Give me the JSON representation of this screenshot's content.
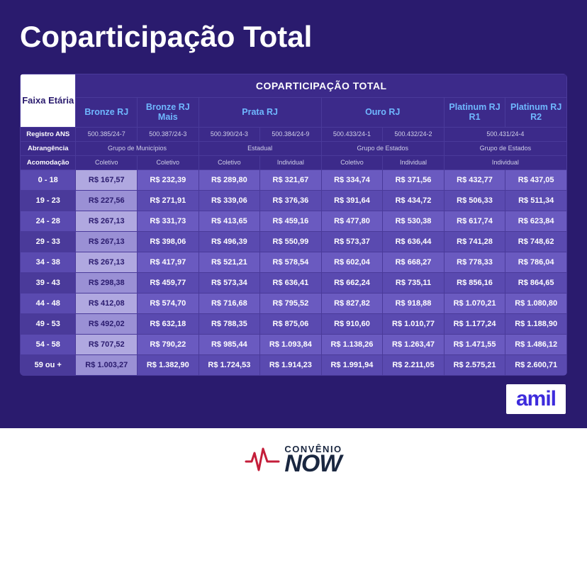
{
  "title": "Coparticipação Total",
  "table": {
    "corner": "Faixa Etária",
    "supertitle": "COPARTICIPAÇÃO TOTAL",
    "plans": [
      "Bronze RJ",
      "Bronze RJ Mais",
      "Prata RJ",
      "Ouro RJ",
      "Platinum RJ R1",
      "Platinum RJ R2"
    ],
    "meta_labels": {
      "registro": "Registro ANS",
      "abrangencia": "Abrangência",
      "acomodacao": "Acomodação"
    },
    "registro": [
      "500.385/24-7",
      "500.387/24-3",
      "500.390/24-3",
      "500.384/24-9",
      "500.433/24-1",
      "500.432/24-2",
      "500.431/24-4"
    ],
    "abrangencia": [
      "Grupo de Municípios",
      "Estadual",
      "Grupo de Estados",
      "Grupo de Estados"
    ],
    "acomodacao": [
      "Coletivo",
      "Coletivo",
      "Coletivo",
      "Individual",
      "Coletivo",
      "Individual",
      "Individual"
    ],
    "age_rows": [
      "0 - 18",
      "19 - 23",
      "24 - 28",
      "29 - 33",
      "34 - 38",
      "39 - 43",
      "44 - 48",
      "49 - 53",
      "54 - 58",
      "59 ou +"
    ],
    "prices": [
      [
        "R$ 167,57",
        "R$ 232,39",
        "R$ 289,80",
        "R$ 321,67",
        "R$ 334,74",
        "R$ 371,56",
        "R$ 432,77",
        "R$ 437,05"
      ],
      [
        "R$ 227,56",
        "R$ 271,91",
        "R$ 339,06",
        "R$ 376,36",
        "R$ 391,64",
        "R$ 434,72",
        "R$ 506,33",
        "R$ 511,34"
      ],
      [
        "R$ 267,13",
        "R$ 331,73",
        "R$ 413,65",
        "R$ 459,16",
        "R$ 477,80",
        "R$ 530,38",
        "R$ 617,74",
        "R$ 623,84"
      ],
      [
        "R$ 267,13",
        "R$ 398,06",
        "R$ 496,39",
        "R$ 550,99",
        "R$ 573,37",
        "R$ 636,44",
        "R$ 741,28",
        "R$ 748,62"
      ],
      [
        "R$ 267,13",
        "R$ 417,97",
        "R$ 521,21",
        "R$ 578,54",
        "R$ 602,04",
        "R$ 668,27",
        "R$ 778,33",
        "R$ 786,04"
      ],
      [
        "R$ 298,38",
        "R$ 459,77",
        "R$ 573,34",
        "R$ 636,41",
        "R$ 662,24",
        "R$ 735,11",
        "R$ 856,16",
        "R$ 864,65"
      ],
      [
        "R$ 412,08",
        "R$ 574,70",
        "R$ 716,68",
        "R$ 795,52",
        "R$ 827,82",
        "R$ 918,88",
        "R$ 1.070,21",
        "R$ 1.080,80"
      ],
      [
        "R$ 492,02",
        "R$ 632,18",
        "R$ 788,35",
        "R$ 875,06",
        "R$ 910,60",
        "R$ 1.010,77",
        "R$ 1.177,24",
        "R$ 1.188,90"
      ],
      [
        "R$ 707,52",
        "R$ 790,22",
        "R$ 985,44",
        "R$ 1.093,84",
        "R$ 1.138,26",
        "R$ 1.263,47",
        "R$ 1.471,55",
        "R$ 1.486,12"
      ],
      [
        "R$ 1.003,27",
        "R$ 1.382,90",
        "R$ 1.724,53",
        "R$ 1.914,23",
        "R$ 1.991,94",
        "R$ 2.211,05",
        "R$ 2.575,21",
        "R$ 2.600,71"
      ]
    ],
    "row_colors": {
      "age_bg_even": "#5a4ab0",
      "age_bg_odd": "#4a3a9a",
      "col0_even": "#b0a8e0",
      "col0_odd": "#9a90d5",
      "price_even": "#6a5ac0",
      "price_odd": "#5a4ab0",
      "col0_text": "#2a1b6e"
    }
  },
  "brand": {
    "amil": "amil",
    "convenio_top": "CONVÊNIO",
    "convenio_bottom": "NOW"
  },
  "colors": {
    "page_bg": "#2a1b6e",
    "table_bg": "#3c2a8a",
    "border": "#4a3a9a",
    "accent_blue": "#6fb8ff",
    "amil_color": "#3d2bdc",
    "heartbeat": "#c41e3a"
  }
}
